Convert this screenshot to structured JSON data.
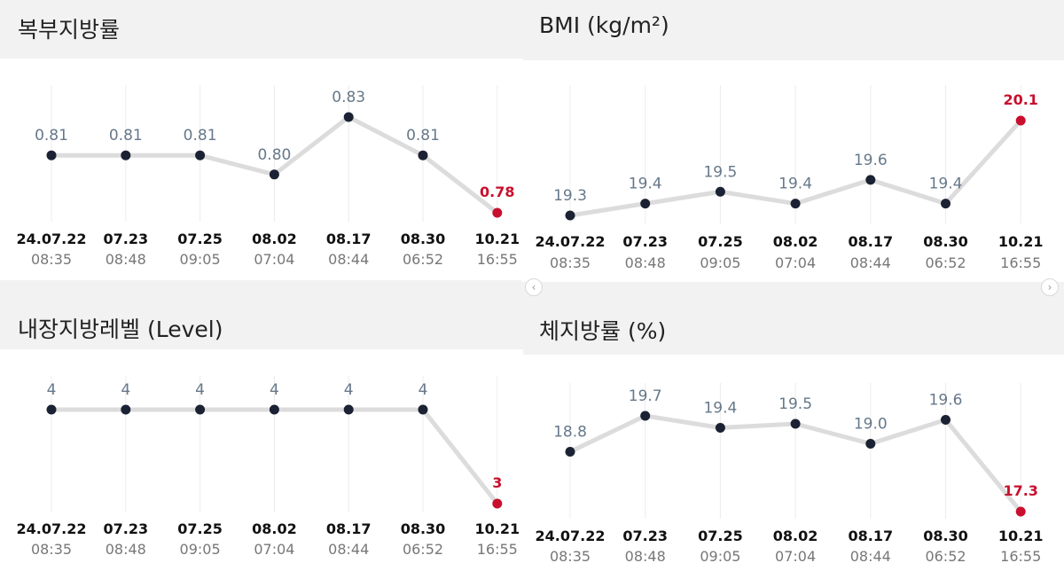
{
  "icons": {
    "scroll_left": "chevron-left-icon",
    "scroll_right": "chevron-right-icon"
  },
  "glyphs": {
    "scroll_left": "‹",
    "scroll_right": "›"
  },
  "colors": {
    "highlight": "#c8102e",
    "point": "#1b2233",
    "line": "#dcdcdc",
    "value_label": "#66788a"
  },
  "chart_data": [
    {
      "type": "line",
      "title": "복부지방률",
      "categories": [
        "24.07.22",
        "07.23",
        "07.25",
        "08.02",
        "08.17",
        "08.30",
        "10.21"
      ],
      "times": [
        "08:35",
        "08:48",
        "09:05",
        "07:04",
        "08:44",
        "06:52",
        "16:55"
      ],
      "values": [
        0.81,
        0.81,
        0.81,
        0.8,
        0.83,
        0.81,
        0.78
      ],
      "value_labels": [
        "0.81",
        "0.81",
        "0.81",
        "0.80",
        "0.83",
        "0.81",
        "0.78"
      ],
      "highlight_last": true,
      "grid": true
    },
    {
      "type": "line",
      "title": "BMI (kg/m²)",
      "categories": [
        "24.07.22",
        "07.23",
        "07.25",
        "08.02",
        "08.17",
        "08.30",
        "10.21"
      ],
      "times": [
        "08:35",
        "08:48",
        "09:05",
        "07:04",
        "08:44",
        "06:52",
        "16:55"
      ],
      "values": [
        19.3,
        19.4,
        19.5,
        19.4,
        19.6,
        19.4,
        20.1
      ],
      "value_labels": [
        "19.3",
        "19.4",
        "19.5",
        "19.4",
        "19.6",
        "19.4",
        "20.1"
      ],
      "highlight_last": true,
      "grid": true
    },
    {
      "type": "line",
      "title": "내장지방레벨 (Level)",
      "categories": [
        "24.07.22",
        "07.23",
        "07.25",
        "08.02",
        "08.17",
        "08.30",
        "10.21"
      ],
      "times": [
        "08:35",
        "08:48",
        "09:05",
        "07:04",
        "08:44",
        "06:52",
        "16:55"
      ],
      "values": [
        4,
        4,
        4,
        4,
        4,
        4,
        3
      ],
      "value_labels": [
        "4",
        "4",
        "4",
        "4",
        "4",
        "4",
        "3"
      ],
      "highlight_last": true,
      "grid": true
    },
    {
      "type": "line",
      "title": "체지방률 (%)",
      "categories": [
        "24.07.22",
        "07.23",
        "07.25",
        "08.02",
        "08.17",
        "08.30",
        "10.21"
      ],
      "times": [
        "08:35",
        "08:48",
        "09:05",
        "07:04",
        "08:44",
        "06:52",
        "16:55"
      ],
      "values": [
        18.8,
        19.7,
        19.4,
        19.5,
        19.0,
        19.6,
        17.3
      ],
      "value_labels": [
        "18.8",
        "19.7",
        "19.4",
        "19.5",
        "19.0",
        "19.6",
        "17.3"
      ],
      "highlight_last": true,
      "grid": true
    }
  ]
}
